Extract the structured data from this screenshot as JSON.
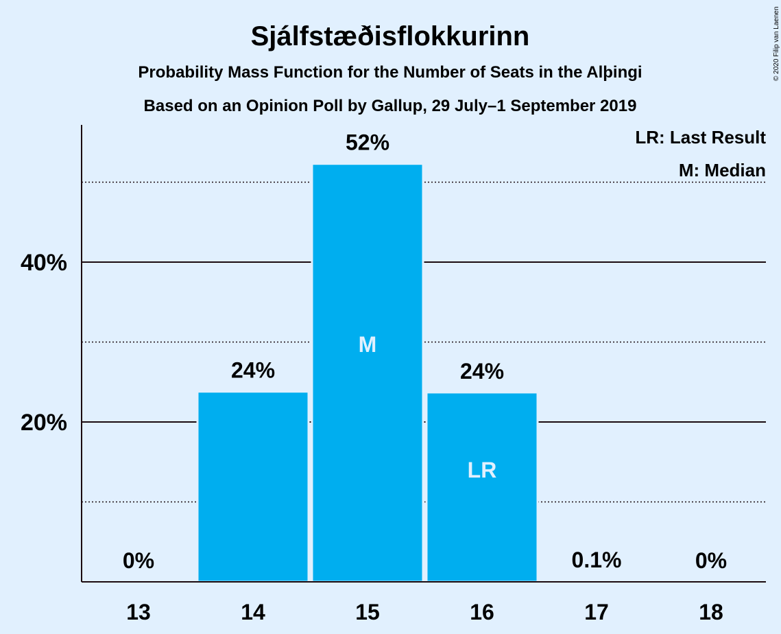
{
  "chart_data": {
    "type": "bar",
    "title": "Sjálfstæðisflokkurinn",
    "subtitle": "Probability Mass Function for the Number of Seats in the Alþingi",
    "subtitle2": "Based on an Opinion Poll by Gallup, 29 July–1 September 2019",
    "categories": [
      "13",
      "14",
      "15",
      "16",
      "17",
      "18"
    ],
    "values": [
      0,
      23.8,
      52.3,
      23.7,
      0.1,
      0
    ],
    "data_labels": [
      "0%",
      "24%",
      "52%",
      "24%",
      "0.1%",
      "0%"
    ],
    "bar_markers": [
      "",
      "",
      "M",
      "LR",
      "",
      ""
    ],
    "ylim": [
      0,
      57
    ],
    "yticks": [
      20,
      40
    ],
    "ytick_labels": [
      "20%",
      "40%"
    ],
    "minor_gridlines": [
      10,
      30,
      50
    ],
    "legend": [
      "LR: Last Result",
      "M: Median"
    ],
    "legend_position": "top-right",
    "bar_color": "#00aeef",
    "background_color": "#e1f0fe",
    "copyright": "© 2020 Filip van Laenen"
  }
}
